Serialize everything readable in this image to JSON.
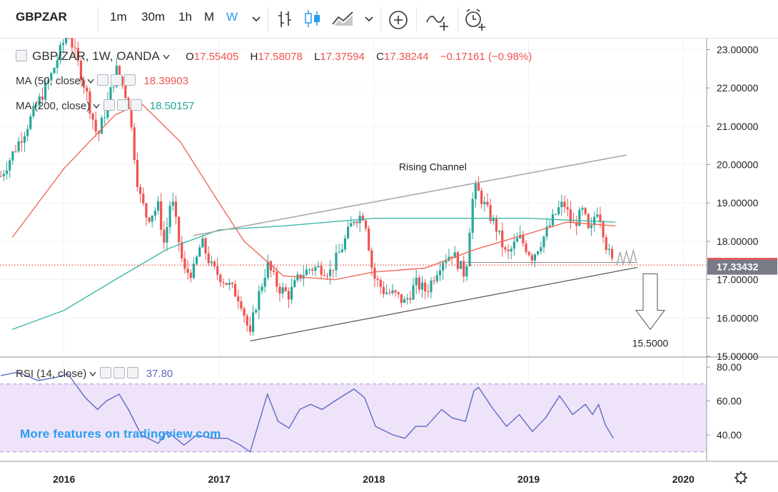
{
  "toolbar": {
    "symbol": "GBPZAR",
    "intervals": [
      "1m",
      "30m",
      "1h",
      "M",
      "W"
    ],
    "active_interval": "W",
    "icons": [
      "chevron-down-icon",
      "bar-chart-icon",
      "candles-icon",
      "area-chart-icon",
      "chevron-down-icon",
      "add-indicator-icon",
      "compare-icon",
      "alert-icon"
    ]
  },
  "legend": {
    "title": "GBP/ZAR, 1W, OANDA",
    "o_label": "O",
    "o": "17.55405",
    "h_label": "H",
    "h": "17.58078",
    "l_label": "L",
    "l": "17.37594",
    "c_label": "C",
    "c": "17.38244",
    "change": "−0.17161 (−0.98%)",
    "ma50_label": "MA (50, close)",
    "ma50_value": "18.39903",
    "ma200_label": "MA (200, close)",
    "ma200_value": "18.50157",
    "rsi_label": "RSI (14, close)",
    "rsi_value": "37.80"
  },
  "annotations": {
    "channel_label": "Rising Channel",
    "target_label": "15.5000"
  },
  "watermark": "More features on tradingview.com",
  "colors": {
    "up": "#26a69a",
    "down": "#ef5350",
    "ma50": "#f06a5c",
    "ma200": "#3eb8a6",
    "rsi": "#5b6cc7",
    "rsi_band": "#eadcf6",
    "price_tag": "#ef5350",
    "support_tag": "#787b86"
  },
  "chart_data": {
    "type": "candlestick",
    "instrument": "GBP/ZAR",
    "interval": "1W",
    "price_axis": {
      "ticks": [
        "15.00000",
        "16.00000",
        "17.00000",
        "18.00000",
        "19.00000",
        "20.00000",
        "21.00000",
        "22.00000",
        "23.00000"
      ],
      "range": [
        15.0,
        23.25
      ]
    },
    "time_axis": {
      "ticks": [
        "2016",
        "2017",
        "2018",
        "2019",
        "2020"
      ]
    },
    "price_tags": {
      "last": "17.38244",
      "support": "17.33432"
    },
    "anchors": [
      [
        "2015-08-05",
        19.7
      ],
      [
        "2015-10-01",
        20.9
      ],
      [
        "2015-12-01",
        22.3
      ],
      [
        "2016-01-10",
        23.5
      ],
      [
        "2016-02-20",
        22.0
      ],
      [
        "2016-03-20",
        20.7
      ],
      [
        "2016-04-10",
        21.5
      ],
      [
        "2016-05-05",
        22.5
      ],
      [
        "2016-06-01",
        21.6
      ],
      [
        "2016-06-25",
        19.3
      ],
      [
        "2016-07-15",
        18.6
      ],
      [
        "2016-08-10",
        18.9
      ],
      [
        "2016-08-25",
        17.9
      ],
      [
        "2016-09-10",
        19.2
      ],
      [
        "2016-10-10",
        17.2
      ],
      [
        "2016-11-01",
        17.2
      ],
      [
        "2016-11-20",
        18.0
      ],
      [
        "2016-12-15",
        17.3
      ],
      [
        "2017-01-20",
        16.9
      ],
      [
        "2017-02-20",
        16.5
      ],
      [
        "2017-03-15",
        15.5
      ],
      [
        "2017-03-25",
        16.2
      ],
      [
        "2017-04-25",
        17.4
      ],
      [
        "2017-05-20",
        16.8
      ],
      [
        "2017-06-15",
        16.6
      ],
      [
        "2017-07-10",
        17.1
      ],
      [
        "2017-08-05",
        17.3
      ],
      [
        "2017-09-01",
        17.3
      ],
      [
        "2017-09-20",
        17.2
      ],
      [
        "2017-10-20",
        17.9
      ],
      [
        "2017-11-15",
        18.6
      ],
      [
        "2017-12-10",
        18.7
      ],
      [
        "2017-12-30",
        17.1
      ],
      [
        "2018-01-25",
        16.7
      ],
      [
        "2018-02-20",
        16.6
      ],
      [
        "2018-03-15",
        16.4
      ],
      [
        "2018-04-10",
        16.9
      ],
      [
        "2018-05-05",
        16.7
      ],
      [
        "2018-06-10",
        17.5
      ],
      [
        "2018-07-05",
        17.7
      ],
      [
        "2018-08-05",
        17.1
      ],
      [
        "2018-08-20",
        19.0
      ],
      [
        "2018-08-30",
        19.4
      ],
      [
        "2018-09-25",
        18.8
      ],
      [
        "2018-10-15",
        18.4
      ],
      [
        "2018-11-10",
        17.6
      ],
      [
        "2018-12-10",
        18.1
      ],
      [
        "2019-01-10",
        17.6
      ],
      [
        "2019-02-10",
        18.2
      ],
      [
        "2019-03-10",
        18.8
      ],
      [
        "2019-03-25",
        19.0
      ],
      [
        "2019-04-15",
        18.4
      ],
      [
        "2019-05-10",
        18.8
      ],
      [
        "2019-05-25",
        18.1
      ],
      [
        "2019-06-10",
        18.9
      ],
      [
        "2019-06-20",
        18.6
      ],
      [
        "2019-07-05",
        17.8
      ],
      [
        "2019-07-20",
        17.38
      ]
    ],
    "ma50": [
      [
        "2015-09-01",
        18.1
      ],
      [
        "2016-01-01",
        19.9
      ],
      [
        "2016-05-01",
        21.3
      ],
      [
        "2016-07-01",
        21.6
      ],
      [
        "2016-10-01",
        20.6
      ],
      [
        "2017-01-01",
        19.0
      ],
      [
        "2017-03-01",
        18.0
      ],
      [
        "2017-06-01",
        17.1
      ],
      [
        "2017-10-01",
        17.0
      ],
      [
        "2018-01-01",
        17.2
      ],
      [
        "2018-05-01",
        17.3
      ],
      [
        "2018-09-01",
        17.8
      ],
      [
        "2019-01-01",
        18.2
      ],
      [
        "2019-04-01",
        18.5
      ],
      [
        "2019-07-25",
        18.4
      ]
    ],
    "ma200": [
      [
        "2015-09-01",
        15.7
      ],
      [
        "2016-01-01",
        16.2
      ],
      [
        "2016-05-01",
        17.0
      ],
      [
        "2016-09-01",
        17.8
      ],
      [
        "2017-01-01",
        18.3
      ],
      [
        "2017-06-01",
        18.4
      ],
      [
        "2018-01-01",
        18.6
      ],
      [
        "2018-07-01",
        18.6
      ],
      [
        "2019-01-01",
        18.6
      ],
      [
        "2019-07-25",
        18.5
      ]
    ],
    "rsi": {
      "ticks": [
        "40.00",
        "60.00",
        "80.00"
      ],
      "band": [
        30,
        70
      ],
      "points": [
        [
          "2015-08-05",
          75
        ],
        [
          "2015-09-15",
          77
        ],
        [
          "2015-11-01",
          72
        ],
        [
          "2015-12-15",
          74
        ],
        [
          "2016-01-10",
          76
        ],
        [
          "2016-02-20",
          62
        ],
        [
          "2016-03-20",
          55
        ],
        [
          "2016-04-10",
          60
        ],
        [
          "2016-05-10",
          64
        ],
        [
          "2016-06-01",
          55
        ],
        [
          "2016-07-01",
          40
        ],
        [
          "2016-08-10",
          35
        ],
        [
          "2016-09-01",
          42
        ],
        [
          "2016-10-10",
          34
        ],
        [
          "2016-11-10",
          40
        ],
        [
          "2016-12-15",
          38
        ],
        [
          "2017-01-20",
          38
        ],
        [
          "2017-02-20",
          34
        ],
        [
          "2017-03-15",
          30
        ],
        [
          "2017-04-25",
          64
        ],
        [
          "2017-05-20",
          48
        ],
        [
          "2017-06-15",
          44
        ],
        [
          "2017-07-10",
          55
        ],
        [
          "2017-08-05",
          58
        ],
        [
          "2017-09-01",
          55
        ],
        [
          "2017-10-01",
          60
        ],
        [
          "2017-11-15",
          67
        ],
        [
          "2017-12-10",
          62
        ],
        [
          "2018-01-05",
          45
        ],
        [
          "2018-02-15",
          40
        ],
        [
          "2018-03-15",
          38
        ],
        [
          "2018-04-10",
          45
        ],
        [
          "2018-05-05",
          45
        ],
        [
          "2018-06-10",
          55
        ],
        [
          "2018-07-05",
          50
        ],
        [
          "2018-08-05",
          48
        ],
        [
          "2018-08-25",
          66
        ],
        [
          "2018-09-05",
          68
        ],
        [
          "2018-10-10",
          55
        ],
        [
          "2018-11-10",
          45
        ],
        [
          "2018-12-10",
          52
        ],
        [
          "2019-01-10",
          42
        ],
        [
          "2019-02-10",
          50
        ],
        [
          "2019-03-15",
          63
        ],
        [
          "2019-04-15",
          52
        ],
        [
          "2019-05-15",
          58
        ],
        [
          "2019-06-01",
          52
        ],
        [
          "2019-06-15",
          58
        ],
        [
          "2019-07-01",
          46
        ],
        [
          "2019-07-20",
          38
        ]
      ]
    }
  }
}
